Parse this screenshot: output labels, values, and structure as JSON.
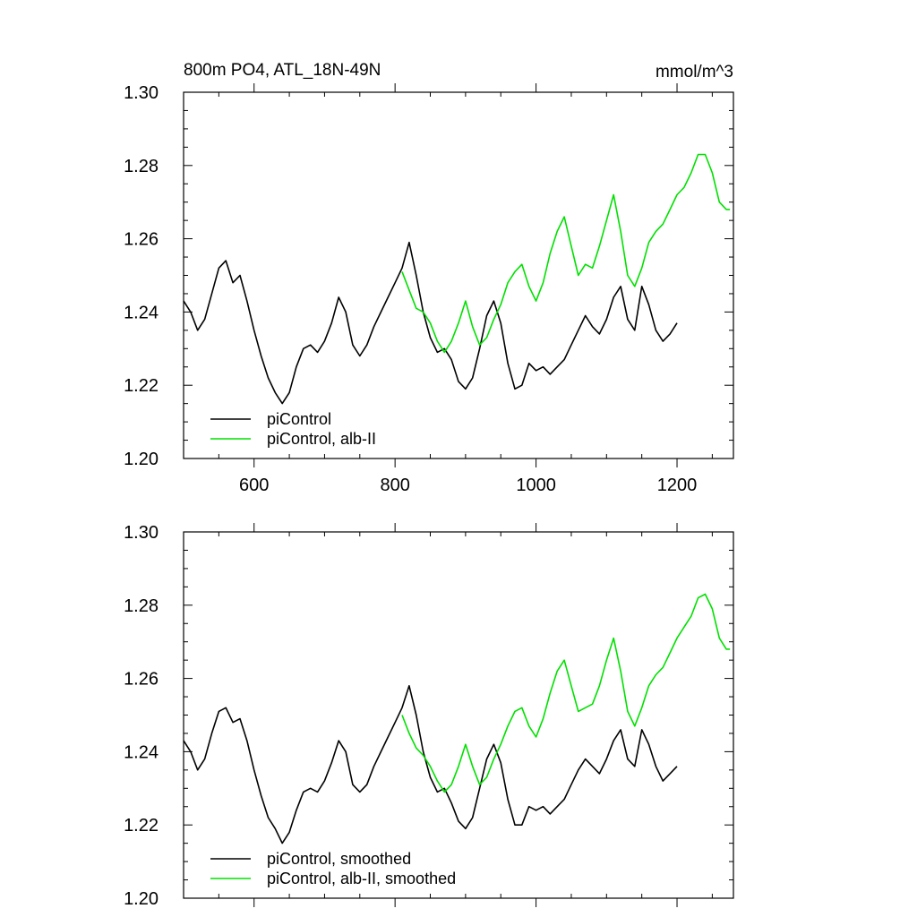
{
  "chart_data": [
    {
      "type": "line",
      "title": "800m PO4, ATL_18N-49N",
      "units": "mmol/m^3",
      "xlim": [
        500,
        1280
      ],
      "ylim": [
        1.2,
        1.3
      ],
      "x_ticks": [
        600,
        800,
        1000,
        1200
      ],
      "x_tick_labels": [
        "600",
        "800",
        "1000",
        "1200"
      ],
      "y_ticks": [
        1.2,
        1.22,
        1.24,
        1.26,
        1.28,
        1.3
      ],
      "y_tick_labels": [
        "1.20",
        "1.22",
        "1.24",
        "1.26",
        "1.28",
        "1.30"
      ],
      "legend_position": "bottom-left",
      "series": [
        {
          "name": "piControl",
          "color": "#000000",
          "x": [
            500,
            510,
            520,
            530,
            540,
            550,
            560,
            570,
            580,
            590,
            600,
            610,
            620,
            630,
            640,
            650,
            660,
            670,
            680,
            690,
            700,
            710,
            720,
            730,
            740,
            750,
            760,
            770,
            780,
            790,
            800,
            810,
            820,
            830,
            840,
            850,
            860,
            870,
            880,
            890,
            900,
            910,
            920,
            930,
            940,
            950,
            960,
            970,
            980,
            990,
            1000,
            1010,
            1020,
            1030,
            1040,
            1050,
            1060,
            1070,
            1080,
            1090,
            1100,
            1110,
            1120,
            1130,
            1140,
            1150,
            1160,
            1170,
            1180,
            1190,
            1200
          ],
          "values": [
            1.243,
            1.24,
            1.235,
            1.238,
            1.245,
            1.252,
            1.254,
            1.248,
            1.25,
            1.243,
            1.235,
            1.228,
            1.222,
            1.218,
            1.215,
            1.218,
            1.225,
            1.23,
            1.231,
            1.229,
            1.232,
            1.237,
            1.244,
            1.24,
            1.231,
            1.228,
            1.231,
            1.236,
            1.24,
            1.244,
            1.248,
            1.252,
            1.259,
            1.25,
            1.24,
            1.233,
            1.229,
            1.23,
            1.227,
            1.221,
            1.219,
            1.222,
            1.23,
            1.239,
            1.243,
            1.237,
            1.226,
            1.219,
            1.22,
            1.226,
            1.224,
            1.225,
            1.223,
            1.225,
            1.227,
            1.231,
            1.235,
            1.239,
            1.236,
            1.234,
            1.238,
            1.244,
            1.247,
            1.238,
            1.235,
            1.247,
            1.242,
            1.235,
            1.232,
            1.234,
            1.237
          ]
        },
        {
          "name": "piControl, alb-II",
          "color": "#00e000",
          "x": [
            810,
            820,
            830,
            840,
            850,
            860,
            870,
            880,
            890,
            900,
            910,
            920,
            930,
            940,
            950,
            960,
            970,
            980,
            990,
            1000,
            1010,
            1020,
            1030,
            1040,
            1050,
            1060,
            1070,
            1080,
            1090,
            1100,
            1110,
            1120,
            1130,
            1140,
            1150,
            1160,
            1170,
            1180,
            1190,
            1200,
            1210,
            1220,
            1230,
            1240,
            1250,
            1260,
            1270,
            1275
          ],
          "values": [
            1.251,
            1.246,
            1.241,
            1.24,
            1.237,
            1.232,
            1.229,
            1.232,
            1.237,
            1.243,
            1.236,
            1.231,
            1.233,
            1.238,
            1.242,
            1.248,
            1.251,
            1.253,
            1.247,
            1.243,
            1.248,
            1.256,
            1.262,
            1.266,
            1.258,
            1.25,
            1.253,
            1.252,
            1.258,
            1.265,
            1.272,
            1.262,
            1.25,
            1.247,
            1.252,
            1.259,
            1.262,
            1.264,
            1.268,
            1.272,
            1.274,
            1.278,
            1.283,
            1.283,
            1.278,
            1.27,
            1.268,
            1.268
          ]
        }
      ]
    },
    {
      "type": "line",
      "title": "",
      "xlim": [
        500,
        1280
      ],
      "ylim": [
        1.2,
        1.3
      ],
      "x_ticks": [
        600,
        800,
        1000,
        1200
      ],
      "y_ticks": [
        1.2,
        1.22,
        1.24,
        1.26,
        1.28,
        1.3
      ],
      "y_tick_labels": [
        "1.20",
        "1.22",
        "1.24",
        "1.26",
        "1.28",
        "1.30"
      ],
      "legend_position": "bottom-left",
      "series": [
        {
          "name": "piControl, smoothed",
          "color": "#000000",
          "x": [
            500,
            510,
            520,
            530,
            540,
            550,
            560,
            570,
            580,
            590,
            600,
            610,
            620,
            630,
            640,
            650,
            660,
            670,
            680,
            690,
            700,
            710,
            720,
            730,
            740,
            750,
            760,
            770,
            780,
            790,
            800,
            810,
            820,
            830,
            840,
            850,
            860,
            870,
            880,
            890,
            900,
            910,
            920,
            930,
            940,
            950,
            960,
            970,
            980,
            990,
            1000,
            1010,
            1020,
            1030,
            1040,
            1050,
            1060,
            1070,
            1080,
            1090,
            1100,
            1110,
            1120,
            1130,
            1140,
            1150,
            1160,
            1170,
            1180,
            1190,
            1200
          ],
          "values": [
            1.243,
            1.24,
            1.235,
            1.238,
            1.245,
            1.251,
            1.252,
            1.248,
            1.249,
            1.243,
            1.235,
            1.228,
            1.222,
            1.219,
            1.215,
            1.218,
            1.224,
            1.229,
            1.23,
            1.229,
            1.232,
            1.237,
            1.243,
            1.24,
            1.231,
            1.229,
            1.231,
            1.236,
            1.24,
            1.244,
            1.248,
            1.252,
            1.258,
            1.25,
            1.24,
            1.233,
            1.229,
            1.23,
            1.226,
            1.221,
            1.219,
            1.222,
            1.23,
            1.238,
            1.242,
            1.237,
            1.227,
            1.22,
            1.22,
            1.225,
            1.224,
            1.225,
            1.223,
            1.225,
            1.227,
            1.231,
            1.235,
            1.238,
            1.236,
            1.234,
            1.238,
            1.243,
            1.246,
            1.238,
            1.236,
            1.246,
            1.242,
            1.236,
            1.232,
            1.234,
            1.236
          ]
        },
        {
          "name": "piControl, alb-II, smoothed",
          "color": "#00e000",
          "x": [
            810,
            820,
            830,
            840,
            850,
            860,
            870,
            880,
            890,
            900,
            910,
            920,
            930,
            940,
            950,
            960,
            970,
            980,
            990,
            1000,
            1010,
            1020,
            1030,
            1040,
            1050,
            1060,
            1070,
            1080,
            1090,
            1100,
            1110,
            1120,
            1130,
            1140,
            1150,
            1160,
            1170,
            1180,
            1190,
            1200,
            1210,
            1220,
            1230,
            1240,
            1250,
            1260,
            1270,
            1275
          ],
          "values": [
            1.25,
            1.245,
            1.241,
            1.239,
            1.236,
            1.232,
            1.229,
            1.231,
            1.236,
            1.242,
            1.236,
            1.231,
            1.233,
            1.238,
            1.242,
            1.247,
            1.251,
            1.252,
            1.247,
            1.244,
            1.249,
            1.256,
            1.262,
            1.265,
            1.258,
            1.251,
            1.252,
            1.253,
            1.258,
            1.265,
            1.271,
            1.262,
            1.251,
            1.247,
            1.252,
            1.258,
            1.261,
            1.263,
            1.267,
            1.271,
            1.274,
            1.277,
            1.282,
            1.283,
            1.279,
            1.271,
            1.268,
            1.268
          ]
        }
      ]
    }
  ]
}
